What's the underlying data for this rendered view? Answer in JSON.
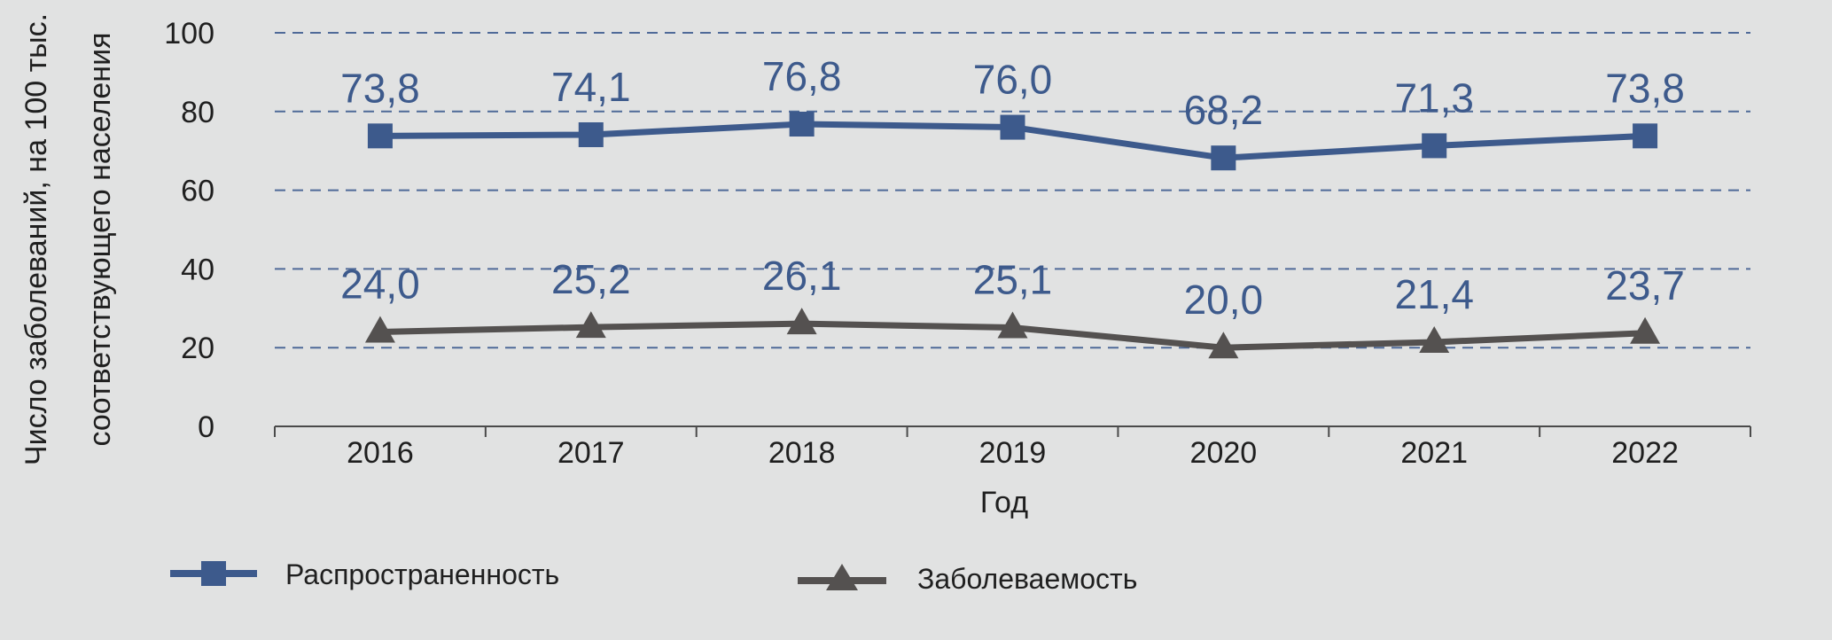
{
  "chart_data": {
    "type": "line",
    "categories": [
      "2016",
      "2017",
      "2018",
      "2019",
      "2020",
      "2021",
      "2022"
    ],
    "series": [
      {
        "name": "Распространенность",
        "values": [
          73.8,
          74.1,
          76.8,
          76.0,
          68.2,
          71.3,
          73.8
        ],
        "labels": [
          "73,8",
          "74,1",
          "76,8",
          "76,0",
          "68,2",
          "71,3",
          "73,8"
        ],
        "color": "#3d5a8c",
        "marker": "square"
      },
      {
        "name": "Заболеваемость",
        "values": [
          24.0,
          25.2,
          26.1,
          25.1,
          20.0,
          21.4,
          23.7
        ],
        "labels": [
          "24,0",
          "25,2",
          "26,1",
          "25,1",
          "20,0",
          "21,4",
          "23,7"
        ],
        "color": "#545150",
        "label_color": "#3d5a8c",
        "marker": "triangle"
      }
    ],
    "xlabel": "Год",
    "ylabel_lines": [
      "Число заболеваний, на 100 тыс.",
      "соответствующего населения"
    ],
    "ylim": [
      0,
      100
    ],
    "yticks": [
      "0",
      "20",
      "40",
      "60",
      "80",
      "100"
    ],
    "grid": "dashed horizontal",
    "legend_position": "bottom"
  }
}
